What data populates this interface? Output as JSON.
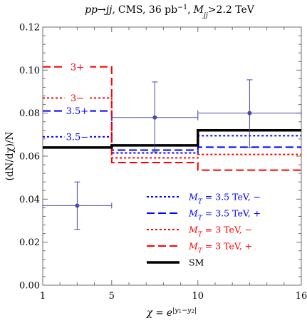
{
  "chart_data": {
    "type": "line",
    "title": "pp→jj, CMS, 36 pb⁻¹, Mjj>2.2 TeV",
    "title_parts": {
      "process": "pp→jj,",
      "experiment": "CMS, 36 pb",
      "lumi_exp": "−1",
      "sep": ",",
      "cut_var": "M",
      "cut_sub": "jj",
      "cut_val": ">2.2 TeV"
    },
    "xlabel": "χ = e^|y1−y2|",
    "xlabel_parts": {
      "chi": "χ",
      "eq": " = ",
      "e": "e",
      "exp": "|y",
      "s1": "1",
      "minus": "−y",
      "s2": "2",
      "close": "|"
    },
    "ylabel": "(dN/dχ)/N",
    "x_tick_values": [
      1,
      5,
      10,
      16
    ],
    "x_tick_labels": [
      "1",
      "5",
      "10",
      "16"
    ],
    "y_tick_values": [
      0,
      0.02,
      0.04,
      0.06,
      0.08,
      0.1,
      0.12
    ],
    "y_tick_labels": [
      "0.00",
      "0.02",
      "0.04",
      "0.06",
      "0.08",
      "0.10",
      "0.12"
    ],
    "xlim": [
      1,
      16
    ],
    "ylim": [
      0,
      0.12
    ],
    "bin_edges": [
      1,
      5,
      10,
      16
    ],
    "grid": false,
    "legend_position": "lower-right",
    "series": [
      {
        "key": "mt35m",
        "name": "MT = 3.5 TeV, −",
        "legend_var": "M",
        "legend_sub": "T",
        "legend_rest": " = 3.5 TeV, −",
        "color": "#0000ff",
        "dash": "3,3",
        "values": [
          0.069,
          0.0615,
          0.0695
        ]
      },
      {
        "key": "mt35p",
        "name": "MT = 3.5 TeV, +",
        "legend_var": "M",
        "legend_sub": "T",
        "legend_rest": " = 3.5 TeV, +",
        "color": "#0000ff",
        "dash": "11,5",
        "values": [
          0.081,
          0.0628,
          0.0642
        ]
      },
      {
        "key": "mt3m",
        "name": "MT = 3 TeV, −",
        "legend_var": "M",
        "legend_sub": "T",
        "legend_rest": " = 3 TeV, −",
        "color": "#ff0000",
        "dash": "3,3",
        "values": [
          0.087,
          0.0592,
          0.0608
        ]
      },
      {
        "key": "mt3p",
        "name": "MT = 3 TeV, +",
        "legend_var": "M",
        "legend_sub": "T",
        "legend_rest": " = 3 TeV, +",
        "color": "#ff0000",
        "dash": "11,5",
        "values": [
          0.1015,
          0.057,
          0.0535
        ]
      },
      {
        "key": "sm",
        "name": "SM",
        "legend_var": "",
        "legend_sub": "",
        "legend_rest": "SM",
        "color": "#000000",
        "dash": "",
        "width": 3.5,
        "values": [
          0.064,
          0.065,
          0.072
        ]
      }
    ],
    "annotations": [
      {
        "text": "3+",
        "color": "#ff0000",
        "x": 3.0,
        "y": 0.1015
      },
      {
        "text": "3−",
        "color": "#ff0000",
        "x": 3.0,
        "y": 0.087
      },
      {
        "text": "3.5+",
        "color": "#0000ff",
        "x": 3.0,
        "y": 0.081
      },
      {
        "text": "3.5−",
        "color": "#0000ff",
        "x": 3.0,
        "y": 0.069
      }
    ],
    "data_points": {
      "name": "CMS data",
      "color": "#4a4aa8",
      "points": [
        {
          "x": 3.0,
          "y": 0.037,
          "xerr": [
            1,
            5
          ],
          "yerr": [
            0.026,
            0.048
          ]
        },
        {
          "x": 7.5,
          "y": 0.078,
          "xerr": [
            5,
            10
          ],
          "yerr": [
            0.062,
            0.0945
          ]
        },
        {
          "x": 13.0,
          "y": 0.08,
          "xerr": [
            10,
            16
          ],
          "yerr": [
            0.064,
            0.0955
          ]
        }
      ]
    }
  }
}
